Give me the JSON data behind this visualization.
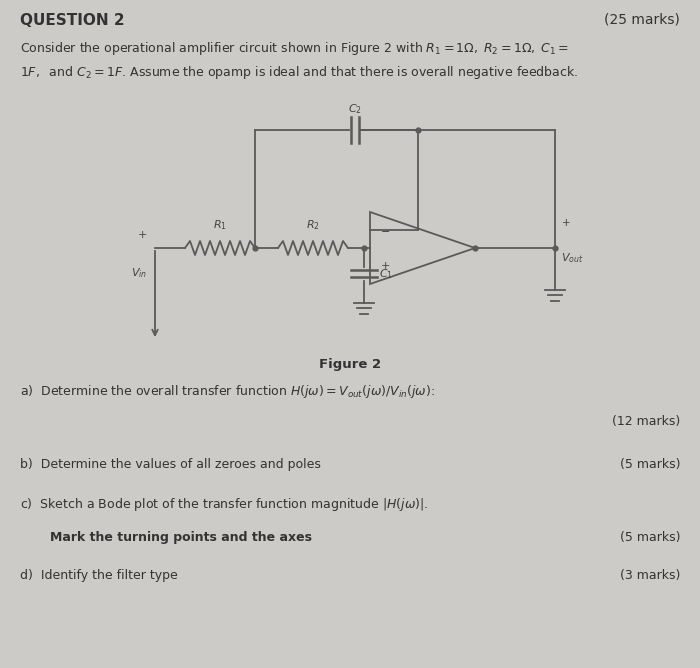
{
  "background_color": "#cccbc7",
  "title": "QUESTION 2",
  "marks_title": "(25 marks)",
  "intro_line1": "Consider the operational amplifier circuit shown in Figure 2 with $R_1 = 1\\Omega,\\; R_2 = 1\\Omega,\\; C_1 =$",
  "intro_line2": "$1F,\\;$ and $C_2 = 1F$. Assume the opamp is ideal and that there is overall negative feedback.",
  "figure_label": "Figure 2",
  "question_a": "a)  Determine the overall transfer function $H(j\\omega) = V_{out}(j\\omega)/V_{in}(j\\omega)$:",
  "marks_a": "(12 marks)",
  "question_b": "b)  Determine the values of all zeroes and poles",
  "marks_b": "(5 marks)",
  "question_c": "c)  Sketch a Bode plot of the transfer function magnitude $|H(j\\omega)|$.",
  "question_c2": "Mark the turning points and the axes",
  "marks_c": "(5 marks)",
  "question_d": "d)  Identify the filter type",
  "marks_d": "(3 marks)",
  "circuit_color": "#5a5a5a",
  "lw": 1.3
}
